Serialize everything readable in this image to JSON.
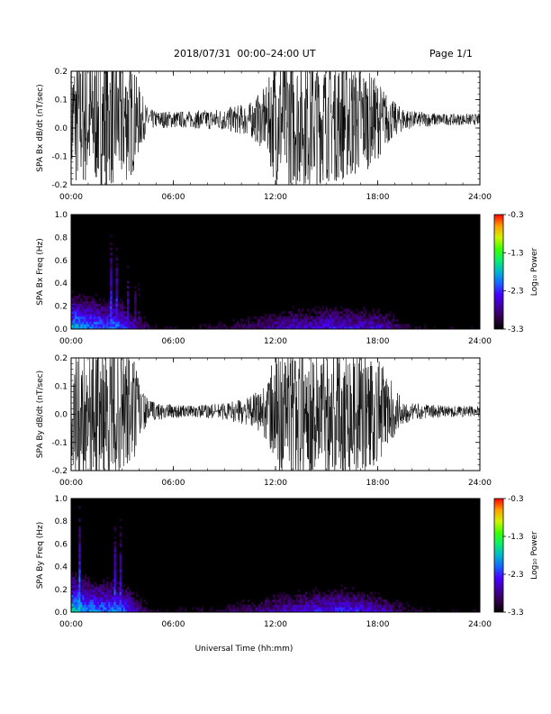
{
  "header": {
    "title": "2018/07/31  00:00–24:00 UT",
    "page": "Page 1/1"
  },
  "xlabel": "Universal Time (hh:mm)",
  "chart_data": [
    {
      "type": "line",
      "ylabel": "SPA Bx dB/dt (nT/sec)",
      "xlim": [
        0,
        24
      ],
      "ylim": [
        -0.2,
        0.2
      ],
      "xticks": [
        "00:00",
        "06:00",
        "12:00",
        "18:00",
        "24:00"
      ],
      "yticks": [
        "-0.2",
        "-0.1",
        "0.0",
        "0.1",
        "0.2"
      ],
      "baseline": 0.03,
      "envelope": {
        "hours": [
          0,
          1,
          2,
          3,
          3.6,
          4.1,
          4.5,
          5,
          7,
          9,
          10.5,
          11.5,
          12,
          13,
          14,
          15,
          16,
          17,
          18,
          18.7,
          19.2,
          20,
          22,
          24
        ],
        "amplitude": [
          0.24,
          0.24,
          0.24,
          0.24,
          0.2,
          0.1,
          0.04,
          0.03,
          0.03,
          0.04,
          0.06,
          0.12,
          0.24,
          0.24,
          0.24,
          0.22,
          0.22,
          0.2,
          0.14,
          0.08,
          0.05,
          0.03,
          0.02,
          0.02
        ]
      },
      "color": "#000000"
    },
    {
      "type": "heatmap",
      "ylabel": "SPA Bx Freq (Hz)",
      "xlim": [
        0,
        24
      ],
      "ylim": [
        0,
        1
      ],
      "xticks": [
        "00:00",
        "06:00",
        "12:00",
        "18:00",
        "24:00"
      ],
      "yticks": [
        "0.0",
        "0.2",
        "0.4",
        "0.6",
        "0.8",
        "1.0"
      ],
      "colorbar": {
        "label": "Log₁₀ Power",
        "ticks": [
          "-0.3",
          "-1.3",
          "-2.3",
          "-3.3"
        ],
        "range": [
          -3.3,
          -0.3
        ]
      },
      "activity": {
        "hours": [
          0,
          0.5,
          1,
          1.5,
          2,
          2.5,
          3,
          3.5,
          4,
          4.5,
          5,
          7,
          9,
          10,
          11,
          12,
          13,
          14,
          15,
          16,
          17,
          18,
          19,
          20,
          21,
          24
        ],
        "power": [
          -1.7,
          -1.9,
          -2.0,
          -2.0,
          -2.1,
          -2.0,
          -2.2,
          -2.5,
          -2.7,
          -3.0,
          -3.2,
          -3.2,
          -3.0,
          -2.9,
          -2.8,
          -2.6,
          -2.5,
          -2.5,
          -2.4,
          -2.4,
          -2.5,
          -2.5,
          -2.8,
          -3.1,
          -3.2,
          -3.3
        ]
      }
    },
    {
      "type": "line",
      "ylabel": "SPA By dB/dt (nT/sec)",
      "xlim": [
        0,
        24
      ],
      "ylim": [
        -0.2,
        0.2
      ],
      "xticks": [
        "00:00",
        "06:00",
        "12:00",
        "18:00",
        "24:00"
      ],
      "yticks": [
        "-0.2",
        "-0.1",
        "0.0",
        "0.1",
        "0.2"
      ],
      "baseline": 0.01,
      "envelope": {
        "hours": [
          0,
          1,
          2,
          3,
          3.6,
          4.0,
          4.4,
          5,
          7,
          9,
          10.5,
          11.5,
          12,
          13,
          14,
          15,
          16,
          17,
          18,
          18.7,
          19.3,
          20,
          22,
          24
        ],
        "amplitude": [
          0.24,
          0.24,
          0.24,
          0.24,
          0.22,
          0.12,
          0.05,
          0.03,
          0.02,
          0.03,
          0.05,
          0.1,
          0.24,
          0.24,
          0.24,
          0.24,
          0.24,
          0.22,
          0.2,
          0.12,
          0.06,
          0.03,
          0.02,
          0.02
        ]
      },
      "color": "#000000"
    },
    {
      "type": "heatmap",
      "ylabel": "SPA By Freq (Hz)",
      "xlim": [
        0,
        24
      ],
      "ylim": [
        0,
        1
      ],
      "xticks": [
        "00:00",
        "06:00",
        "12:00",
        "18:00",
        "24:00"
      ],
      "yticks": [
        "0.0",
        "0.2",
        "0.4",
        "0.6",
        "0.8",
        "1.0"
      ],
      "colorbar": {
        "label": "Log₁₀ Power",
        "ticks": [
          "-0.3",
          "-1.3",
          "-2.3",
          "-3.3"
        ],
        "range": [
          -3.3,
          -0.3
        ]
      },
      "activity": {
        "hours": [
          0,
          0.5,
          1,
          1.5,
          2,
          2.5,
          3,
          3.5,
          4,
          4.5,
          5,
          7,
          9,
          10,
          11,
          12,
          13,
          14,
          15,
          16,
          17,
          18,
          19,
          20,
          21,
          24
        ],
        "power": [
          -1.6,
          -1.8,
          -1.9,
          -2.0,
          -2.0,
          -2.0,
          -2.1,
          -2.4,
          -2.7,
          -3.0,
          -3.2,
          -3.2,
          -3.0,
          -2.9,
          -2.8,
          -2.6,
          -2.5,
          -2.4,
          -2.4,
          -2.3,
          -2.4,
          -2.5,
          -2.8,
          -3.1,
          -3.2,
          -3.3
        ]
      }
    }
  ]
}
